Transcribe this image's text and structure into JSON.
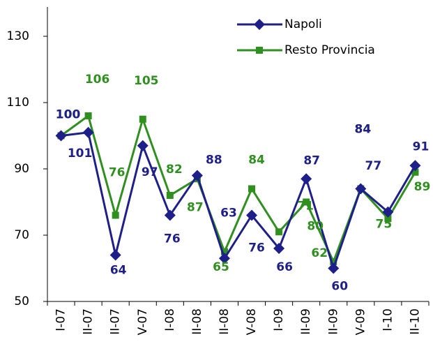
{
  "chart_data": {
    "type": "line",
    "categories": [
      "I-07",
      "II-07",
      "II-07",
      "V-07",
      "I-08",
      "II-08",
      "II-08",
      "V-08",
      "I-09",
      "II-09",
      "II-09",
      "V-09",
      "I-10",
      "II-10"
    ],
    "series": [
      {
        "name": "Napoli",
        "color": "#1f1f8a",
        "marker": "diamond",
        "values": [
          100,
          101,
          64,
          97,
          76,
          88,
          63,
          76,
          66,
          87,
          60,
          84,
          77,
          91
        ]
      },
      {
        "name": "Resto Provincia",
        "color": "#2f8f1f",
        "marker": "square",
        "values": [
          100,
          106,
          76,
          105,
          82,
          87,
          65,
          84,
          71,
          80,
          62,
          84,
          75,
          89
        ]
      }
    ],
    "ylim": [
      50,
      140
    ],
    "yticks": [
      50,
      70,
      90,
      110,
      130
    ],
    "legend": "top-right"
  }
}
